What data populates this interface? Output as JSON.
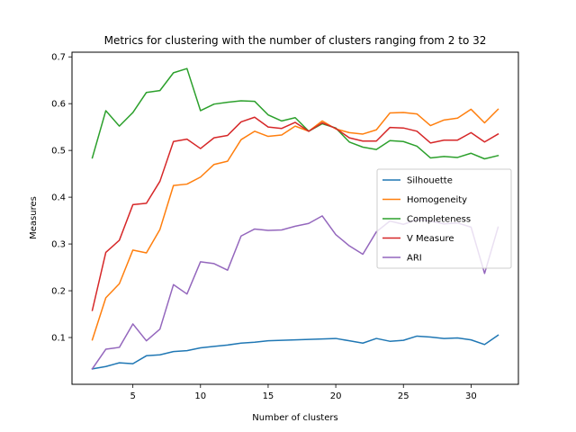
{
  "chart_data": {
    "type": "line",
    "title": "Metrics for clustering with the number of clusters ranging from 2 to 32",
    "xlabel": "Number of clusters",
    "ylabel": "Measures",
    "xlim": [
      0.5,
      33.5
    ],
    "ylim": [
      0.0,
      0.71
    ],
    "xticks": [
      5,
      10,
      15,
      20,
      25,
      30
    ],
    "yticks": [
      0.1,
      0.2,
      0.3,
      0.4,
      0.5,
      0.6,
      0.7
    ],
    "grid": false,
    "legend_position": "center-right",
    "x": [
      2,
      3,
      4,
      5,
      6,
      7,
      8,
      9,
      10,
      11,
      12,
      13,
      14,
      15,
      16,
      17,
      18,
      19,
      20,
      21,
      22,
      23,
      24,
      25,
      26,
      27,
      28,
      29,
      30,
      31,
      32
    ],
    "series": [
      {
        "name": "Silhouette",
        "color": "#1f77b4",
        "values": [
          0.033,
          0.038,
          0.046,
          0.044,
          0.061,
          0.063,
          0.07,
          0.072,
          0.078,
          0.081,
          0.084,
          0.088,
          0.09,
          0.093,
          0.094,
          0.095,
          0.096,
          0.097,
          0.098,
          0.093,
          0.088,
          0.098,
          0.092,
          0.094,
          0.103,
          0.101,
          0.098,
          0.099,
          0.095,
          0.085,
          0.105
        ]
      },
      {
        "name": "Homogeneity",
        "color": "#ff7f0e",
        "values": [
          0.095,
          0.185,
          0.215,
          0.287,
          0.281,
          0.331,
          0.425,
          0.428,
          0.443,
          0.47,
          0.477,
          0.523,
          0.541,
          0.53,
          0.533,
          0.552,
          0.541,
          0.563,
          0.546,
          0.538,
          0.535,
          0.544,
          0.58,
          0.581,
          0.578,
          0.553,
          0.565,
          0.569,
          0.588,
          0.559,
          0.588
        ]
      },
      {
        "name": "Completeness",
        "color": "#2ca02c",
        "values": [
          0.484,
          0.585,
          0.552,
          0.581,
          0.624,
          0.628,
          0.666,
          0.675,
          0.585,
          0.599,
          0.603,
          0.606,
          0.605,
          0.576,
          0.563,
          0.57,
          0.541,
          0.557,
          0.548,
          0.518,
          0.507,
          0.502,
          0.521,
          0.519,
          0.509,
          0.484,
          0.487,
          0.485,
          0.494,
          0.482,
          0.489
        ]
      },
      {
        "name": "V Measure",
        "color": "#d62728",
        "values": [
          0.158,
          0.282,
          0.308,
          0.384,
          0.387,
          0.434,
          0.519,
          0.524,
          0.504,
          0.527,
          0.532,
          0.561,
          0.571,
          0.55,
          0.547,
          0.56,
          0.541,
          0.559,
          0.547,
          0.527,
          0.52,
          0.52,
          0.549,
          0.548,
          0.541,
          0.516,
          0.522,
          0.522,
          0.538,
          0.518,
          0.535
        ]
      },
      {
        "name": "ARI",
        "color": "#9467bd",
        "values": [
          0.033,
          0.075,
          0.079,
          0.129,
          0.093,
          0.118,
          0.213,
          0.193,
          0.262,
          0.258,
          0.244,
          0.317,
          0.332,
          0.329,
          0.33,
          0.338,
          0.344,
          0.36,
          0.32,
          0.296,
          0.278,
          0.326,
          0.349,
          0.342,
          0.352,
          0.349,
          0.343,
          0.345,
          0.336,
          0.237,
          0.336
        ]
      }
    ]
  }
}
